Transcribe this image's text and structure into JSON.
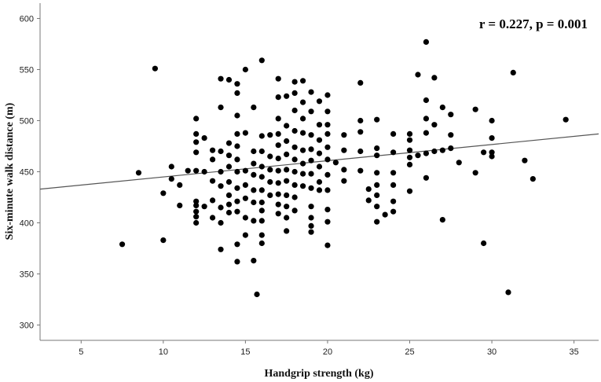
{
  "chart_data": {
    "type": "scatter",
    "title": "",
    "xlabel": "Handgrip strength (kg)",
    "ylabel": "Six-minute walk distance (m)",
    "annotation": "r = 0.227, p = 0.001",
    "xlim": [
      2.5,
      36.5
    ],
    "ylim": [
      285,
      615
    ],
    "xticks": [
      5,
      10,
      15,
      20,
      25,
      30,
      35
    ],
    "yticks": [
      300,
      350,
      400,
      450,
      500,
      550,
      600
    ],
    "grid": false,
    "colors": {
      "points": "#000000",
      "line": "#555555",
      "axes": "#777777"
    },
    "fit_line": {
      "x": [
        2.5,
        36.5
      ],
      "y": [
        433,
        487
      ]
    },
    "points": [
      [
        7.5,
        379
      ],
      [
        8.5,
        449
      ],
      [
        9.5,
        551
      ],
      [
        10,
        429
      ],
      [
        10,
        383
      ],
      [
        10.5,
        443
      ],
      [
        10.5,
        455
      ],
      [
        11,
        437
      ],
      [
        11,
        417
      ],
      [
        11.5,
        451
      ],
      [
        12,
        502
      ],
      [
        12,
        487
      ],
      [
        12,
        479
      ],
      [
        12,
        469
      ],
      [
        12,
        451
      ],
      [
        12,
        421
      ],
      [
        12,
        417
      ],
      [
        12,
        411
      ],
      [
        12,
        406
      ],
      [
        12,
        400
      ],
      [
        12.5,
        483
      ],
      [
        12.5,
        450
      ],
      [
        12.5,
        416
      ],
      [
        13,
        471
      ],
      [
        13,
        462
      ],
      [
        13,
        441
      ],
      [
        13,
        422
      ],
      [
        13,
        405
      ],
      [
        13.5,
        541
      ],
      [
        13.5,
        513
      ],
      [
        13.5,
        470
      ],
      [
        13.5,
        450
      ],
      [
        13.5,
        436
      ],
      [
        13.5,
        415
      ],
      [
        13.5,
        400
      ],
      [
        13.5,
        374
      ],
      [
        14,
        540
      ],
      [
        14,
        478
      ],
      [
        14,
        466
      ],
      [
        14,
        455
      ],
      [
        14,
        440
      ],
      [
        14,
        427
      ],
      [
        14,
        418
      ],
      [
        14,
        410
      ],
      [
        14.5,
        536
      ],
      [
        14.5,
        527
      ],
      [
        14.5,
        505
      ],
      [
        14.5,
        487
      ],
      [
        14.5,
        475
      ],
      [
        14.5,
        462
      ],
      [
        14.5,
        450
      ],
      [
        14.5,
        434
      ],
      [
        14.5,
        421
      ],
      [
        14.5,
        411
      ],
      [
        14.5,
        379
      ],
      [
        14.5,
        362
      ],
      [
        15,
        550
      ],
      [
        15,
        488
      ],
      [
        15,
        451
      ],
      [
        15,
        437
      ],
      [
        15,
        424
      ],
      [
        15,
        405
      ],
      [
        15,
        388
      ],
      [
        15.5,
        513
      ],
      [
        15.5,
        470
      ],
      [
        15.5,
        458
      ],
      [
        15.5,
        447
      ],
      [
        15.5,
        432
      ],
      [
        15.5,
        420
      ],
      [
        15.5,
        402
      ],
      [
        15.5,
        363
      ],
      [
        16,
        559
      ],
      [
        16,
        485
      ],
      [
        16,
        470
      ],
      [
        16,
        455
      ],
      [
        16,
        445
      ],
      [
        16,
        432
      ],
      [
        16,
        420
      ],
      [
        16,
        412
      ],
      [
        16,
        402
      ],
      [
        16,
        388
      ],
      [
        16,
        380
      ],
      [
        15.7,
        330
      ],
      [
        16.5,
        486
      ],
      [
        16.5,
        465
      ],
      [
        16.5,
        452
      ],
      [
        16.5,
        440
      ],
      [
        16.5,
        427
      ],
      [
        17,
        541
      ],
      [
        17,
        523
      ],
      [
        17,
        502
      ],
      [
        17,
        487
      ],
      [
        17,
        476
      ],
      [
        17,
        463
      ],
      [
        17,
        451
      ],
      [
        17,
        439
      ],
      [
        17,
        428
      ],
      [
        17,
        418
      ],
      [
        17,
        409
      ],
      [
        17.5,
        524
      ],
      [
        17.5,
        495
      ],
      [
        17.5,
        480
      ],
      [
        17.5,
        467
      ],
      [
        17.5,
        452
      ],
      [
        17.5,
        441
      ],
      [
        17.5,
        427
      ],
      [
        17.5,
        416
      ],
      [
        17.5,
        405
      ],
      [
        17.5,
        392
      ],
      [
        18,
        538
      ],
      [
        18,
        527
      ],
      [
        18,
        510
      ],
      [
        18,
        490
      ],
      [
        18,
        474
      ],
      [
        18,
        462
      ],
      [
        18,
        450
      ],
      [
        18,
        437
      ],
      [
        18,
        425
      ],
      [
        18,
        412
      ],
      [
        18.5,
        539
      ],
      [
        18.5,
        518
      ],
      [
        18.5,
        502
      ],
      [
        18.5,
        488
      ],
      [
        18.5,
        471
      ],
      [
        18.5,
        458
      ],
      [
        18.5,
        448
      ],
      [
        18.5,
        436
      ],
      [
        19,
        528
      ],
      [
        19,
        509
      ],
      [
        19,
        486
      ],
      [
        19,
        472
      ],
      [
        19,
        461
      ],
      [
        19,
        448
      ],
      [
        19,
        434
      ],
      [
        19,
        416
      ],
      [
        19,
        405
      ],
      [
        19,
        397
      ],
      [
        19,
        391
      ],
      [
        19.5,
        519
      ],
      [
        19.5,
        496
      ],
      [
        19.5,
        481
      ],
      [
        19.5,
        468
      ],
      [
        19.5,
        455
      ],
      [
        19.5,
        440
      ],
      [
        19.5,
        432
      ],
      [
        20,
        525
      ],
      [
        20,
        509
      ],
      [
        20,
        496
      ],
      [
        20,
        487
      ],
      [
        20,
        474
      ],
      [
        20,
        462
      ],
      [
        20,
        447
      ],
      [
        20,
        432
      ],
      [
        20,
        413
      ],
      [
        20,
        401
      ],
      [
        20,
        378
      ],
      [
        20.5,
        459
      ],
      [
        21,
        486
      ],
      [
        21,
        471
      ],
      [
        21,
        452
      ],
      [
        21,
        441
      ],
      [
        22,
        537
      ],
      [
        22,
        500
      ],
      [
        22,
        489
      ],
      [
        22,
        470
      ],
      [
        22,
        451
      ],
      [
        22.5,
        433
      ],
      [
        22.5,
        422
      ],
      [
        23,
        501
      ],
      [
        23,
        473
      ],
      [
        23,
        466
      ],
      [
        23,
        449
      ],
      [
        23,
        437
      ],
      [
        23,
        427
      ],
      [
        23,
        416
      ],
      [
        23,
        401
      ],
      [
        23.5,
        408
      ],
      [
        24,
        487
      ],
      [
        24,
        469
      ],
      [
        24,
        449
      ],
      [
        24,
        437
      ],
      [
        24,
        421
      ],
      [
        24,
        411
      ],
      [
        25,
        487
      ],
      [
        25,
        481
      ],
      [
        25,
        471
      ],
      [
        25,
        464
      ],
      [
        25,
        457
      ],
      [
        25,
        431
      ],
      [
        25.5,
        545
      ],
      [
        25.5,
        466
      ],
      [
        26,
        577
      ],
      [
        26,
        520
      ],
      [
        26,
        502
      ],
      [
        26,
        488
      ],
      [
        26,
        468
      ],
      [
        26,
        444
      ],
      [
        26.5,
        542
      ],
      [
        26.5,
        496
      ],
      [
        26.5,
        470
      ],
      [
        27,
        513
      ],
      [
        27,
        471
      ],
      [
        27,
        403
      ],
      [
        27.5,
        506
      ],
      [
        27.5,
        486
      ],
      [
        27.5,
        473
      ],
      [
        28,
        459
      ],
      [
        29,
        511
      ],
      [
        29,
        449
      ],
      [
        29.5,
        469
      ],
      [
        29.5,
        380
      ],
      [
        30,
        500
      ],
      [
        30,
        483
      ],
      [
        30,
        469
      ],
      [
        30,
        465
      ],
      [
        31,
        332
      ],
      [
        31.3,
        547
      ],
      [
        32,
        461
      ],
      [
        32.5,
        443
      ],
      [
        34.5,
        501
      ]
    ]
  }
}
